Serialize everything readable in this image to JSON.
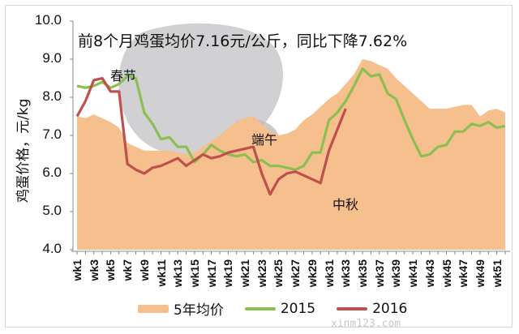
{
  "chart_data": {
    "type": "area+line",
    "title": "前8个月鸡蛋均价7.16元/公斤，同比下降7.62%",
    "xlabel": "",
    "ylabel": "鸡蛋价格，元/kg",
    "ylim": [
      4.0,
      10.0
    ],
    "yticks": [
      "10.0",
      "9.0",
      "8.0",
      "7.0",
      "6.0",
      "5.0",
      "4.0"
    ],
    "xtick_labels": [
      "wk1",
      "wk3",
      "wk5",
      "wk7",
      "wk9",
      "wk11",
      "wk13",
      "wk15",
      "wk17",
      "wk19",
      "wk21",
      "wk23",
      "wk25",
      "wk27",
      "wk29",
      "wk31",
      "wk33",
      "wk35",
      "wk37",
      "wk39",
      "wk41",
      "wk43",
      "wk45",
      "wk47",
      "wk49",
      "wk51"
    ],
    "grid": false,
    "legend_position": "bottom",
    "x": [
      1,
      2,
      3,
      4,
      5,
      6,
      7,
      8,
      9,
      10,
      11,
      12,
      13,
      14,
      15,
      16,
      17,
      18,
      19,
      20,
      21,
      22,
      23,
      24,
      25,
      26,
      27,
      28,
      29,
      30,
      31,
      32,
      33,
      34,
      35,
      36,
      37,
      38,
      39,
      40,
      41,
      42,
      43,
      44,
      45,
      46,
      47,
      48,
      49,
      50,
      51,
      52
    ],
    "series": [
      {
        "name": "5年均价",
        "type": "area",
        "color": "#f6bf8e",
        "values": [
          7.5,
          7.45,
          7.55,
          7.45,
          7.35,
          7.2,
          6.8,
          6.7,
          6.6,
          6.6,
          6.6,
          6.6,
          6.55,
          6.5,
          6.55,
          6.7,
          6.85,
          7.0,
          7.2,
          7.35,
          7.45,
          7.5,
          7.3,
          7.1,
          7.0,
          7.05,
          7.15,
          7.4,
          7.55,
          7.75,
          7.95,
          8.1,
          8.35,
          8.6,
          9.0,
          8.95,
          8.85,
          8.75,
          8.5,
          8.3,
          8.1,
          7.9,
          7.7,
          7.7,
          7.7,
          7.75,
          7.8,
          7.8,
          7.5,
          7.65,
          7.7,
          7.6
        ]
      },
      {
        "name": "2015",
        "type": "line",
        "color": "#8cbf52",
        "values": [
          8.3,
          8.25,
          8.3,
          8.4,
          8.25,
          8.35,
          8.55,
          8.5,
          7.6,
          7.3,
          6.9,
          6.95,
          6.7,
          6.7,
          6.3,
          6.5,
          6.75,
          6.6,
          6.5,
          6.45,
          6.5,
          6.3,
          6.35,
          6.2,
          6.2,
          6.15,
          6.1,
          6.2,
          6.55,
          6.55,
          7.4,
          7.6,
          7.9,
          8.3,
          8.75,
          8.55,
          8.6,
          8.1,
          7.95,
          7.4,
          6.9,
          6.45,
          6.5,
          6.7,
          6.75,
          7.1,
          7.1,
          7.3,
          7.25,
          7.35,
          7.2,
          7.25
        ]
      },
      {
        "name": "2016",
        "type": "line",
        "color": "#c0504d",
        "values": [
          7.5,
          7.9,
          8.45,
          8.5,
          8.15,
          8.15,
          6.25,
          6.1,
          6.0,
          6.15,
          6.2,
          6.3,
          6.4,
          6.2,
          6.35,
          6.5,
          6.4,
          6.45,
          6.55,
          6.6,
          6.65,
          6.7,
          6.0,
          5.45,
          5.85,
          6.0,
          6.05,
          5.95,
          5.85,
          5.75,
          6.6,
          7.15,
          7.7
        ]
      }
    ],
    "annotations": [
      {
        "text": "春节",
        "x_week": 6,
        "y": 8.75
      },
      {
        "text": "端午",
        "x_week": 22,
        "y": 7.0
      },
      {
        "text": "中秋",
        "x_week": 32,
        "y": 5.2
      }
    ]
  },
  "title": "前8个月鸡蛋均价7.16元/公斤，同比下降7.62%",
  "ylabel": "鸡蛋价格，元/kg",
  "annotations": {
    "chunjie": "春节",
    "duanwu": "端午",
    "zhongqiu": "中秋"
  },
  "legend": [
    {
      "label": "5年均价",
      "color": "#f6bf8e"
    },
    {
      "label": "2015",
      "color": "#8cbf52"
    },
    {
      "label": "2016",
      "color": "#c0504d"
    }
  ],
  "watermark": "xinm123.com"
}
